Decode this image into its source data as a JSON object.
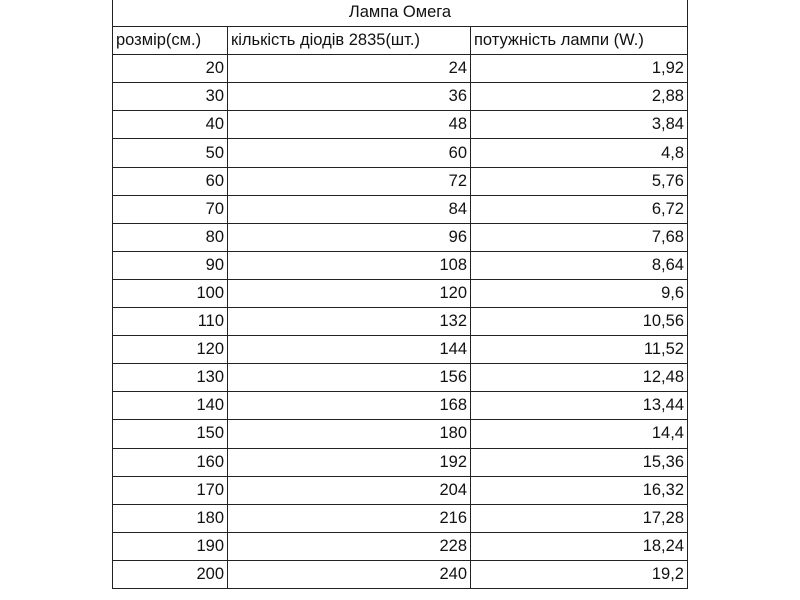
{
  "title": "Лампа Омега",
  "headers": [
    "розмір(см.)",
    "кількість діодів 2835(шт.)",
    "потужність лампи (W.)"
  ],
  "rows": [
    [
      "20",
      "24",
      "1,92"
    ],
    [
      "30",
      "36",
      "2,88"
    ],
    [
      "40",
      "48",
      "3,84"
    ],
    [
      "50",
      "60",
      "4,8"
    ],
    [
      "60",
      "72",
      "5,76"
    ],
    [
      "70",
      "84",
      "6,72"
    ],
    [
      "80",
      "96",
      "7,68"
    ],
    [
      "90",
      "108",
      "8,64"
    ],
    [
      "100",
      "120",
      "9,6"
    ],
    [
      "110",
      "132",
      "10,56"
    ],
    [
      "120",
      "144",
      "11,52"
    ],
    [
      "130",
      "156",
      "12,48"
    ],
    [
      "140",
      "168",
      "13,44"
    ],
    [
      "150",
      "180",
      "14,4"
    ],
    [
      "160",
      "192",
      "15,36"
    ],
    [
      "170",
      "204",
      "16,32"
    ],
    [
      "180",
      "216",
      "17,28"
    ],
    [
      "190",
      "228",
      "18,24"
    ],
    [
      "200",
      "240",
      "19,2"
    ]
  ]
}
